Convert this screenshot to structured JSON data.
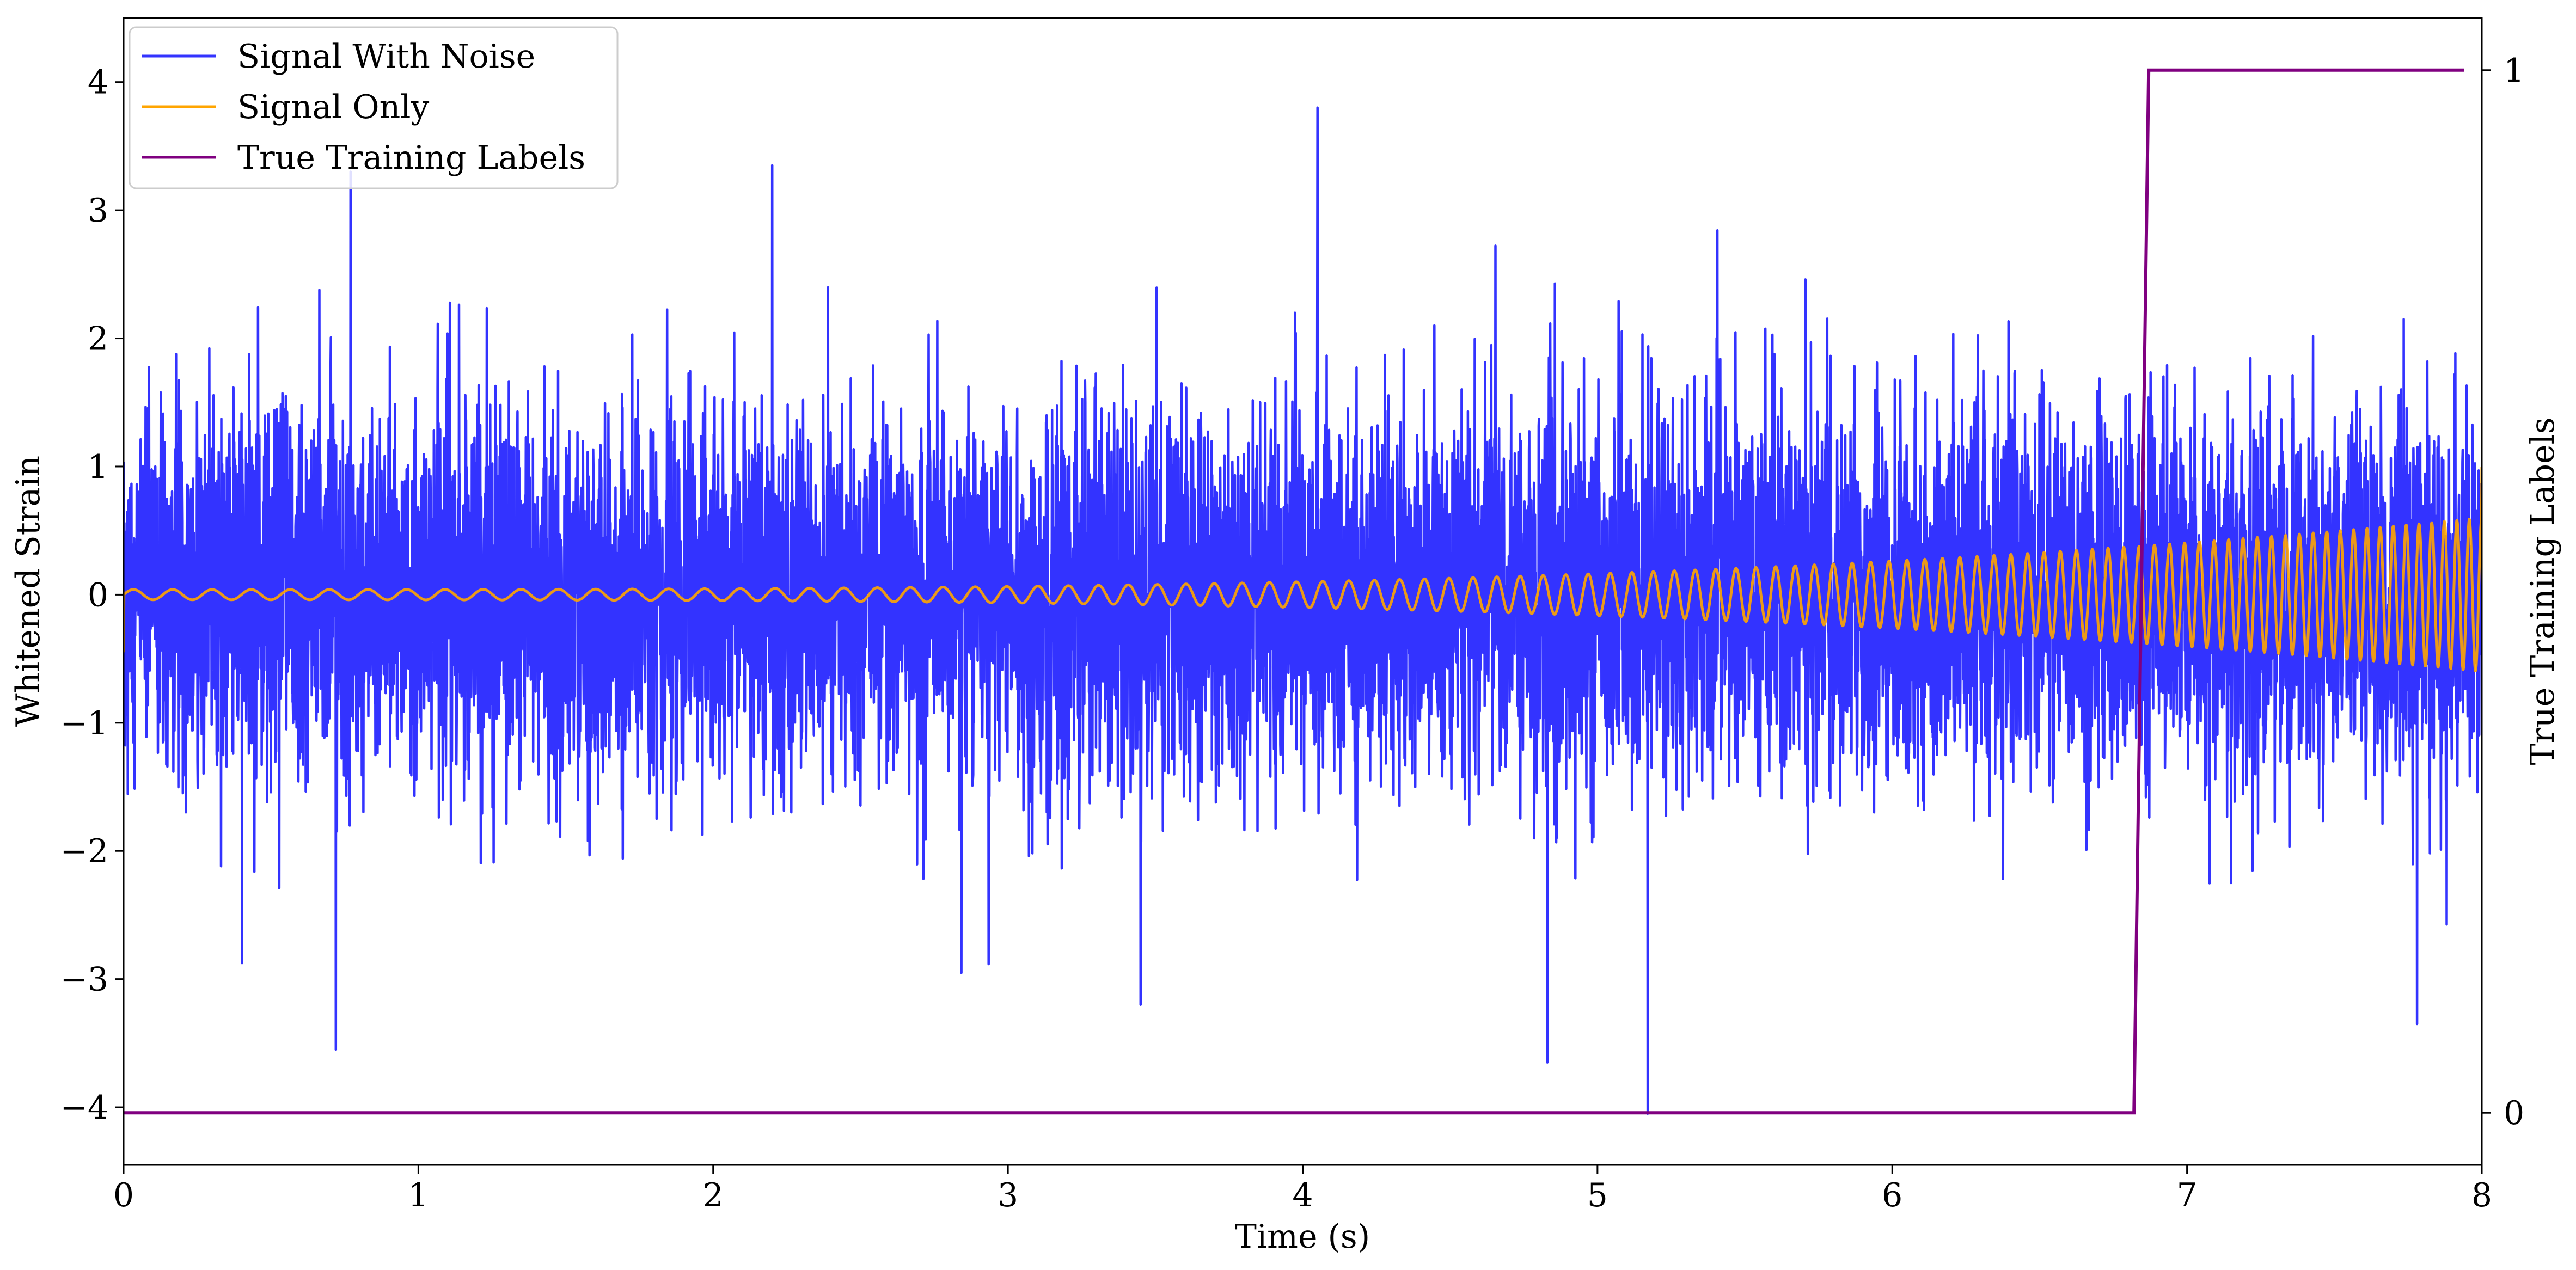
{
  "chart_data": {
    "type": "line",
    "title": "",
    "xlabel": "Time (s)",
    "ylabel_left": "Whitened Strain",
    "ylabel_right": "True Training Labels",
    "xlim": [
      0,
      8
    ],
    "ylim_left": [
      -4.45,
      4.5
    ],
    "ylim_right": [
      -0.05,
      1.05
    ],
    "x_ticks": [
      0,
      1,
      2,
      3,
      4,
      5,
      6,
      7,
      8
    ],
    "x_tick_labels": [
      "0",
      "1",
      "2",
      "3",
      "4",
      "5",
      "6",
      "7",
      "8"
    ],
    "y_left_ticks": [
      -4,
      -3,
      -2,
      -1,
      0,
      1,
      2,
      3,
      4
    ],
    "y_left_tick_labels": [
      "−4",
      "−3",
      "−2",
      "−1",
      "0",
      "1",
      "2",
      "3",
      "4"
    ],
    "y_right_ticks": [
      0,
      1
    ],
    "y_right_tick_labels": [
      "0",
      "1"
    ],
    "grid": false,
    "legend_position": "top-left",
    "series": [
      {
        "name": "Signal With Noise",
        "axis": "left",
        "color": "#3333ff",
        "kind": "noise",
        "std": 0.72,
        "x_start": 0,
        "x_end": 8,
        "y_max": 3.8,
        "y_min": -4.05,
        "outliers": [
          [
            0.72,
            -3.55
          ],
          [
            0.77,
            3.3
          ],
          [
            2.2,
            3.35
          ],
          [
            3.45,
            -3.2
          ],
          [
            4.05,
            3.8
          ],
          [
            4.83,
            -3.65
          ],
          [
            5.17,
            -4.05
          ],
          [
            7.78,
            -3.35
          ]
        ]
      },
      {
        "name": "Signal Only",
        "axis": "left",
        "color": "#ffa500",
        "kind": "chirp",
        "x_start": 0,
        "x_end": 8,
        "amplitude_start": 0.04,
        "amplitude_end": 0.6,
        "frequency_start": 7.5,
        "frequency_end": 24,
        "final_value": 1.0
      },
      {
        "name": "True Training Labels",
        "axis": "right",
        "color": "#800080",
        "kind": "step",
        "x": [
          0,
          6.82,
          6.87,
          7.94
        ],
        "y": [
          0,
          0,
          1,
          1
        ]
      }
    ]
  }
}
